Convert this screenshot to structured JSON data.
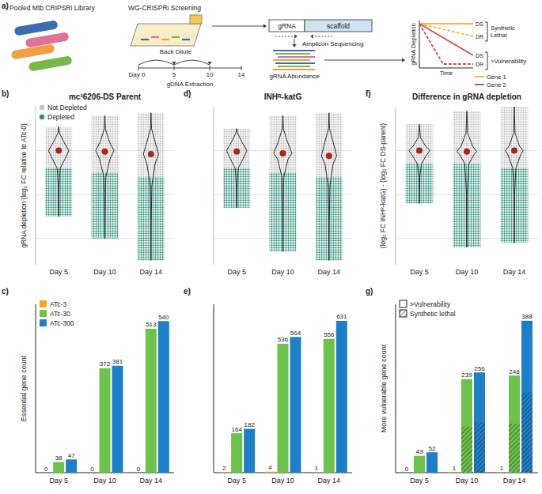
{
  "diagram": {
    "panel": "a)",
    "library_label": "Pooled Mtb CRIPSRi Library",
    "screening_label": "WG-CRISPRi Screening",
    "back_dilute": "Back Dilute",
    "timeline": [
      "Day 0",
      "5",
      "10",
      "14"
    ],
    "extraction": "gDNA Extraction",
    "grna": "gRNA",
    "scaffold": "scaffold",
    "sequencing": "Amplicon Sequencing",
    "abundance": "gRNA Abundance",
    "y_label": "gRNA Depletion",
    "x_label": "Time",
    "line_labels": [
      "DS",
      "DR",
      "DS",
      "DR"
    ],
    "groups": [
      "Synthetic Lethal",
      ">Vulnerability"
    ],
    "genes": [
      "Gene 1",
      "Gene 2"
    ]
  },
  "chart_data": [
    {
      "type": "violin",
      "panel": "b)",
      "title": "mc²6206-DS Parent",
      "y_label": "gRNA depletion (log₂ FC relative to ATc-0)",
      "categories": [
        "Day 5",
        "Day 10",
        "Day 14"
      ],
      "ylim": [
        -13,
        5
      ],
      "yticks": [
        -10,
        -5,
        0
      ],
      "grid": true,
      "tick_labels": "x",
      "legend": "top-left",
      "color": "#a8261c",
      "series": [
        {
          "name": "Not Depleted",
          "color": "#c4c4c4"
        },
        {
          "name": "Depleted",
          "color": "#2f8f80"
        }
      ],
      "distributions": [
        {
          "min": -7.5,
          "max": 2.7,
          "threshold": -2,
          "median": 0,
          "density_y": [
            -7.5,
            -4,
            -2,
            -1,
            0,
            1,
            2,
            2.7
          ],
          "density": [
            0,
            0.04,
            0.15,
            0.6,
            1,
            0.5,
            0.08,
            0
          ]
        },
        {
          "min": -10,
          "max": 4,
          "threshold": -2.5,
          "median": -0.1,
          "density_y": [
            -10,
            -6,
            -3,
            -1,
            0,
            1,
            2.5,
            4
          ],
          "density": [
            0,
            0.03,
            0.1,
            0.5,
            0.9,
            0.45,
            0.05,
            0
          ]
        },
        {
          "min": -12.5,
          "max": 4.3,
          "threshold": -3,
          "median": -0.4,
          "density_y": [
            -12.5,
            -8,
            -4,
            -1.5,
            -0.4,
            1,
            2.5,
            4.3
          ],
          "density": [
            0,
            0.03,
            0.08,
            0.4,
            0.75,
            0.4,
            0.05,
            0
          ]
        }
      ]
    },
    {
      "type": "violin",
      "panel": "d)",
      "title": "INHᴿ-katG",
      "categories": [
        "Day 5",
        "Day 10",
        "Day 14"
      ],
      "ylim": [
        -13,
        5
      ],
      "yticks": [
        -10,
        -5,
        0
      ],
      "grid": true,
      "tick_labels": "x",
      "color": "#a8261c",
      "series": [
        {
          "color": "#c4c4c4"
        },
        {
          "color": "#2f8f80"
        }
      ],
      "distributions": [
        {
          "min": -6.5,
          "max": 2.5,
          "threshold": -2,
          "median": -0.1,
          "density_y": [
            -6.5,
            -4,
            -2,
            -1,
            0,
            1,
            2,
            2.5
          ],
          "density": [
            0,
            0.04,
            0.15,
            0.6,
            1,
            0.5,
            0.08,
            0
          ]
        },
        {
          "min": -11.5,
          "max": 4,
          "threshold": -2.5,
          "median": -0.3,
          "density_y": [
            -11.5,
            -6,
            -3,
            -1,
            -0.3,
            1,
            2.5,
            4
          ],
          "density": [
            0,
            0.03,
            0.1,
            0.5,
            0.9,
            0.45,
            0.05,
            0
          ]
        },
        {
          "min": -12.5,
          "max": 4.3,
          "threshold": -3,
          "median": -0.6,
          "density_y": [
            -12.5,
            -8,
            -4,
            -1.5,
            -0.6,
            1,
            2.5,
            4.3
          ],
          "density": [
            0,
            0.03,
            0.09,
            0.4,
            0.75,
            0.4,
            0.05,
            0
          ]
        }
      ]
    },
    {
      "type": "violin",
      "panel": "f)",
      "title": "Difference in gRNA depletion",
      "y_label": "(log₂ FC INHᴿ-katG) - (log₂ FC DS-parent)",
      "categories": [
        "Day 5",
        "Day 10",
        "Day 14"
      ],
      "ylim": [
        -13,
        5
      ],
      "yticks": [
        -10,
        -5,
        0
      ],
      "grid": true,
      "tick_labels": "x",
      "color": "#a8261c",
      "series": [
        {
          "color": "#c4c4c4"
        },
        {
          "color": "#2f8f80"
        }
      ],
      "distributions": [
        {
          "min": -6,
          "max": 3,
          "threshold": -1.5,
          "median": 0,
          "density_y": [
            -6,
            -3,
            -1.5,
            -0.5,
            0,
            0.5,
            1.5,
            3
          ],
          "density": [
            0,
            0.04,
            0.2,
            0.7,
            1,
            0.6,
            0.1,
            0
          ]
        },
        {
          "min": -11,
          "max": 4.5,
          "threshold": -1.5,
          "median": -0.1,
          "density_y": [
            -11,
            -5,
            -1.5,
            -0.5,
            -0.1,
            0.5,
            2,
            4.5
          ],
          "density": [
            0,
            0.03,
            0.2,
            0.65,
            0.95,
            0.55,
            0.08,
            0
          ]
        },
        {
          "min": -10.5,
          "max": 5,
          "threshold": -2,
          "median": 0,
          "density_y": [
            -10.5,
            -5,
            -2,
            -0.5,
            0,
            0.5,
            2,
            5
          ],
          "density": [
            0,
            0.03,
            0.15,
            0.6,
            0.85,
            0.5,
            0.07,
            0
          ]
        }
      ]
    },
    {
      "type": "bar",
      "panel": "c)",
      "y_label": "Essential gene count",
      "categories": [
        "Day 5",
        "Day 10",
        "Day 14"
      ],
      "ylim": [
        0,
        600
      ],
      "data_labels": true,
      "tick_labels": "x",
      "legend": "top-left",
      "series": [
        {
          "name": "ATc-3",
          "color": "#f5a623",
          "values": [
            0,
            0,
            0
          ]
        },
        {
          "name": "ATc-30",
          "color": "#6cc24a",
          "values": [
            38,
            372,
            513
          ]
        },
        {
          "name": "ATc-300",
          "color": "#1f7fc6",
          "values": [
            47,
            381,
            540
          ]
        }
      ]
    },
    {
      "type": "bar",
      "panel": "e)",
      "categories": [
        "Day 5",
        "Day 10",
        "Day 14"
      ],
      "ylim": [
        0,
        700
      ],
      "data_labels": true,
      "tick_labels": "x",
      "series": [
        {
          "color": "#f5a623",
          "values": [
            2,
            4,
            1
          ]
        },
        {
          "color": "#6cc24a",
          "values": [
            164,
            536,
            556
          ]
        },
        {
          "color": "#1f7fc6",
          "values": [
            182,
            564,
            631
          ]
        }
      ]
    },
    {
      "type": "bar",
      "panel": "g)",
      "y_label": "More vulnerable gene count",
      "categories": [
        "Day 5",
        "Day 10",
        "Day 14"
      ],
      "ylim": [
        0,
        430
      ],
      "data_labels": true,
      "tick_labels": "x",
      "legend": "top-left",
      "fill_labels": {
        "open": ">Vulnerability",
        "hatched": "Synthetic lethal"
      },
      "series": [
        {
          "color": "#f5a623",
          "values": [
            0,
            1,
            1
          ],
          "synthetic_lethal": [
            0,
            0,
            0
          ]
        },
        {
          "color": "#6cc24a",
          "values": [
            43,
            239,
            248
          ],
          "synthetic_lethal": [
            0,
            118,
            125
          ]
        },
        {
          "color": "#1f7fc6",
          "values": [
            52,
            256,
            388
          ],
          "synthetic_lethal": [
            0,
            128,
            205
          ]
        }
      ]
    }
  ]
}
